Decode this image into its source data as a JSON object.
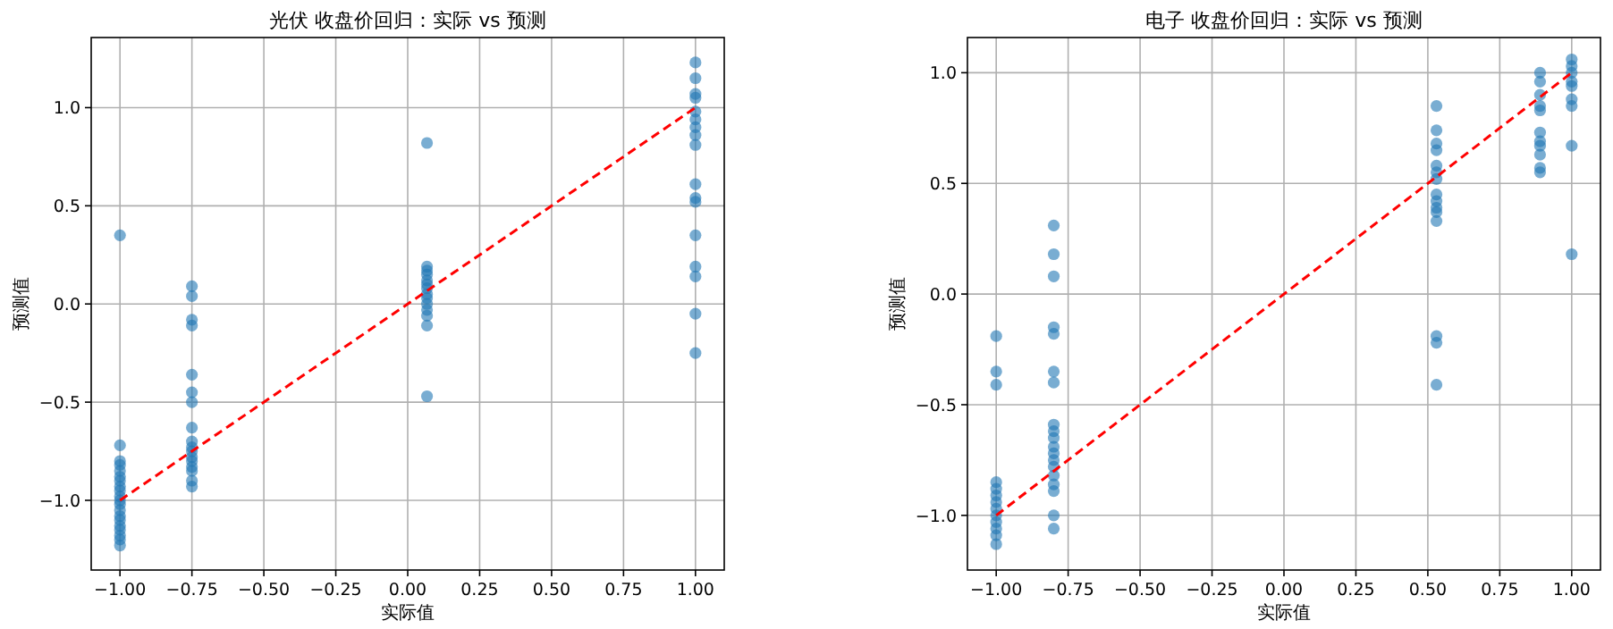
{
  "chart_data": [
    {
      "type": "scatter",
      "title": "光伏 收盘价回归：实际 vs 预测",
      "xlabel": "实际值",
      "ylabel": "预测值",
      "xlim": [
        -1.1,
        1.1
      ],
      "ylim": [
        -1.355,
        1.357
      ],
      "xticks": [
        {
          "value": -1,
          "label": "−1.00"
        },
        {
          "value": -0.75,
          "label": "−0.75"
        },
        {
          "value": -0.5,
          "label": "−0.50"
        },
        {
          "value": -0.25,
          "label": "−0.25"
        },
        {
          "value": 0,
          "label": "0.00"
        },
        {
          "value": 0.25,
          "label": "0.25"
        },
        {
          "value": 0.5,
          "label": "0.50"
        },
        {
          "value": 0.75,
          "label": "0.75"
        },
        {
          "value": 1,
          "label": "1.00"
        }
      ],
      "yticks": [
        {
          "value": -1,
          "label": "−1.0"
        },
        {
          "value": -0.5,
          "label": "−0.5"
        },
        {
          "value": 0,
          "label": "0.0"
        },
        {
          "value": 0.5,
          "label": "0.5"
        },
        {
          "value": 1,
          "label": "1.0"
        }
      ],
      "grid": true,
      "series": [
        {
          "type": "scatter",
          "marker": "circle",
          "color": "#1f77b4",
          "x": [
            -1,
            -1,
            -1,
            -1,
            -1,
            -1,
            -1,
            -1,
            -1,
            -1,
            -1,
            -1,
            -1,
            -1,
            -1,
            -1,
            -1,
            -1,
            -1,
            -1,
            -0.75,
            -0.75,
            -0.75,
            -0.75,
            -0.75,
            -0.75,
            -0.75,
            -0.75,
            -0.75,
            -0.75,
            -0.75,
            -0.75,
            -0.75,
            -0.75,
            -0.75,
            -0.75,
            -0.75,
            0.067,
            0.067,
            0.067,
            0.067,
            0.067,
            0.067,
            0.067,
            0.067,
            0.067,
            0.067,
            0.067,
            0.067,
            0.067,
            0.067,
            1,
            1,
            1,
            1,
            1,
            1,
            1,
            1,
            1,
            1,
            1,
            1,
            1,
            1,
            1,
            1,
            1
          ],
          "values": [
            0.35,
            -0.72,
            -0.8,
            -0.82,
            -0.85,
            -0.88,
            -0.9,
            -0.93,
            -0.95,
            -0.98,
            -1.0,
            -1.02,
            -1.05,
            -1.08,
            -1.1,
            -1.13,
            -1.15,
            -1.18,
            -1.2,
            -1.23,
            0.09,
            0.04,
            -0.08,
            -0.11,
            -0.36,
            -0.45,
            -0.5,
            -0.63,
            -0.7,
            -0.73,
            -0.75,
            -0.78,
            -0.8,
            -0.83,
            -0.85,
            -0.9,
            -0.93,
            0.82,
            0.19,
            0.17,
            0.15,
            0.12,
            0.1,
            0.08,
            0.05,
            0.03,
            0.0,
            -0.03,
            -0.06,
            -0.11,
            -0.47,
            1.23,
            1.15,
            1.07,
            1.05,
            0.98,
            0.94,
            0.9,
            0.86,
            0.81,
            0.61,
            0.54,
            0.52,
            0.35,
            0.19,
            0.14,
            -0.05,
            -0.25
          ]
        },
        {
          "type": "line",
          "color": "#ff0000",
          "line_style": "dashed",
          "x": [
            -1,
            1
          ],
          "values": [
            -1,
            1
          ]
        }
      ]
    },
    {
      "type": "scatter",
      "title": "电子 收盘价回归：实际 vs 预测",
      "xlabel": "实际值",
      "ylabel": "预测值",
      "xlim": [
        -1.1,
        1.1
      ],
      "ylim": [
        -1.247,
        1.159
      ],
      "xticks": [
        {
          "value": -1,
          "label": "−1.00"
        },
        {
          "value": -0.75,
          "label": "−0.75"
        },
        {
          "value": -0.5,
          "label": "−0.50"
        },
        {
          "value": -0.25,
          "label": "−0.25"
        },
        {
          "value": 0,
          "label": "0.00"
        },
        {
          "value": 0.25,
          "label": "0.25"
        },
        {
          "value": 0.5,
          "label": "0.50"
        },
        {
          "value": 0.75,
          "label": "0.75"
        },
        {
          "value": 1,
          "label": "1.00"
        }
      ],
      "yticks": [
        {
          "value": -1,
          "label": "−1.0"
        },
        {
          "value": -0.5,
          "label": "−0.5"
        },
        {
          "value": 0,
          "label": "0.0"
        },
        {
          "value": 0.5,
          "label": "0.5"
        },
        {
          "value": 1,
          "label": "1.0"
        }
      ],
      "grid": true,
      "series": [
        {
          "type": "scatter",
          "marker": "circle",
          "color": "#1f77b4",
          "x": [
            -1,
            -1,
            -1,
            -1,
            -1,
            -1,
            -1,
            -1,
            -1,
            -1,
            -1,
            -1,
            -1,
            -0.8,
            -0.8,
            -0.8,
            -0.8,
            -0.8,
            -0.8,
            -0.8,
            -0.8,
            -0.8,
            -0.8,
            -0.8,
            -0.8,
            -0.8,
            -0.8,
            -0.8,
            -0.8,
            -0.8,
            -0.8,
            -0.8,
            0.53,
            0.53,
            0.53,
            0.53,
            0.53,
            0.53,
            0.53,
            0.53,
            0.53,
            0.53,
            0.53,
            0.53,
            0.53,
            0.53,
            0.53,
            0.89,
            0.89,
            0.89,
            0.89,
            0.89,
            0.89,
            0.89,
            0.89,
            0.89,
            0.89,
            0.89,
            1,
            1,
            1,
            1,
            1,
            1,
            1,
            1,
            1
          ],
          "values": [
            -0.19,
            -0.35,
            -0.41,
            -0.85,
            -0.88,
            -0.91,
            -0.94,
            -0.97,
            -1.0,
            -1.03,
            -1.06,
            -1.09,
            -1.13,
            0.31,
            0.18,
            0.08,
            -0.15,
            -0.18,
            -0.35,
            -0.4,
            -0.59,
            -0.62,
            -0.65,
            -0.69,
            -0.72,
            -0.75,
            -0.78,
            -0.82,
            -0.86,
            -0.89,
            -1.0,
            -1.06,
            0.85,
            0.74,
            0.68,
            0.65,
            0.58,
            0.55,
            0.52,
            0.45,
            0.42,
            0.39,
            0.37,
            0.33,
            -0.19,
            -0.22,
            -0.41,
            1.0,
            0.96,
            0.9,
            0.85,
            0.83,
            0.73,
            0.69,
            0.67,
            0.63,
            0.57,
            0.55,
            1.06,
            1.03,
            1.0,
            0.96,
            0.94,
            0.88,
            0.85,
            0.67,
            0.18
          ]
        },
        {
          "type": "line",
          "color": "#ff0000",
          "line_style": "dashed",
          "x": [
            -1,
            1
          ],
          "values": [
            -1,
            1
          ]
        }
      ]
    }
  ]
}
